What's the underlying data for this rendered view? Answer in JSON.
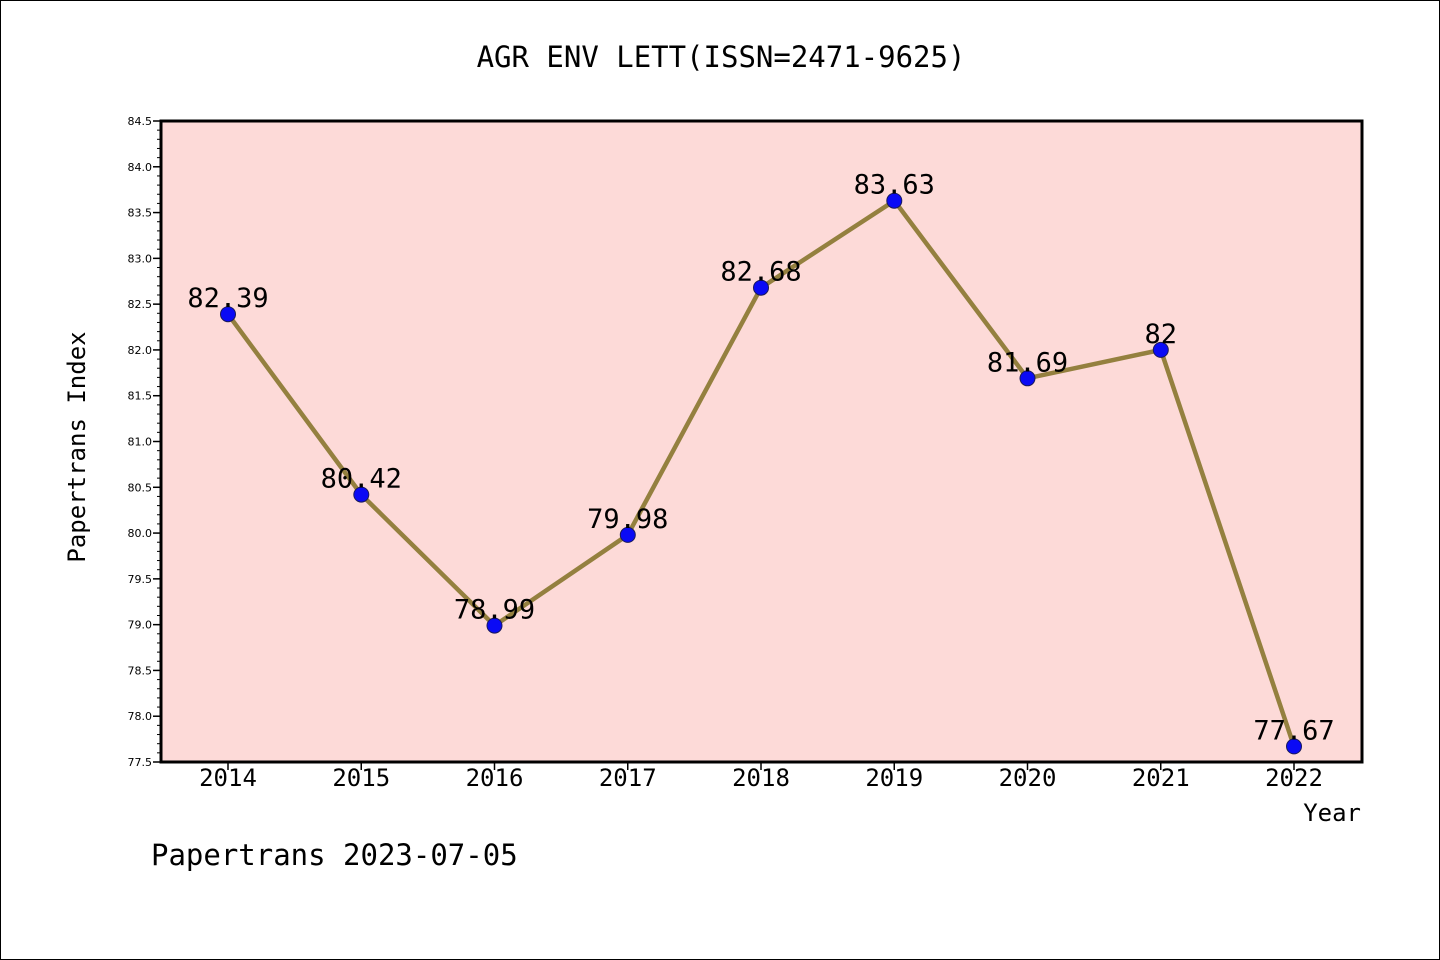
{
  "chart_data": {
    "type": "line",
    "title": "AGR ENV LETT(ISSN=2471-9625)",
    "xlabel": "Year",
    "ylabel": "Papertrans Index",
    "categories": [
      "2014",
      "2015",
      "2016",
      "2017",
      "2018",
      "2019",
      "2020",
      "2021",
      "2022"
    ],
    "values": [
      82.39,
      80.42,
      78.99,
      79.98,
      82.68,
      83.63,
      81.69,
      82,
      77.67
    ],
    "data_labels": [
      "82.39",
      "80.42",
      "78.99",
      "79.98",
      "82.68",
      "83.63",
      "81.69",
      "82",
      "77.67"
    ],
    "ylim": [
      77.5,
      84.5
    ],
    "yticks": [
      "77.5",
      "78.0",
      "78.5",
      "79.0",
      "79.5",
      "80.0",
      "80.5",
      "81.0",
      "81.5",
      "82.0",
      "82.5",
      "83.0",
      "83.5",
      "84.0",
      "84.5"
    ],
    "grid": false,
    "legend": "none",
    "footer": "Papertrans 2023-07-05",
    "colors": {
      "plot_background": "#fddad8",
      "line": "#94803f",
      "marker_fill": "#0a0af5",
      "marker_edge": "#1a1a5c"
    }
  }
}
